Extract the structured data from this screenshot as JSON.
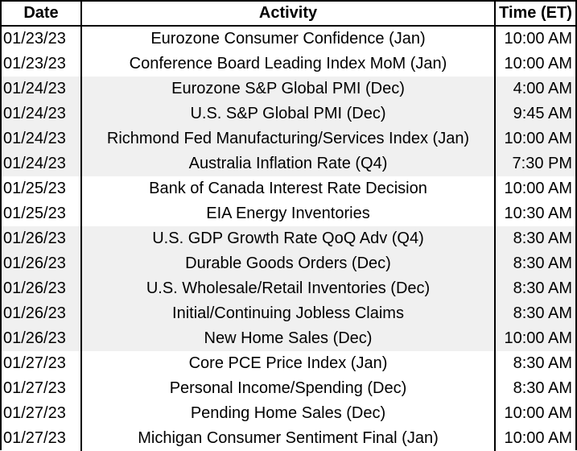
{
  "headers": {
    "date": "Date",
    "activity": "Activity",
    "time": "Time (ET)"
  },
  "rows": [
    {
      "date": "01/23/23",
      "activity": "Eurozone Consumer Confidence (Jan)",
      "time": "10:00 AM",
      "shade": false
    },
    {
      "date": "01/23/23",
      "activity": "Conference Board Leading Index MoM (Jan)",
      "time": "10:00 AM",
      "shade": false
    },
    {
      "date": "01/24/23",
      "activity": "Eurozone S&P Global PMI (Dec)",
      "time": "4:00 AM",
      "shade": true
    },
    {
      "date": "01/24/23",
      "activity": "U.S. S&P Global PMI (Dec)",
      "time": "9:45 AM",
      "shade": true
    },
    {
      "date": "01/24/23",
      "activity": "Richmond Fed Manufacturing/Services Index (Jan)",
      "time": "10:00 AM",
      "shade": true
    },
    {
      "date": "01/24/23",
      "activity": "Australia Inflation Rate (Q4)",
      "time": "7:30 PM",
      "shade": true
    },
    {
      "date": "01/25/23",
      "activity": "Bank of Canada Interest Rate Decision",
      "time": "10:00 AM",
      "shade": false
    },
    {
      "date": "01/25/23",
      "activity": "EIA Energy Inventories",
      "time": "10:30 AM",
      "shade": false
    },
    {
      "date": "01/26/23",
      "activity": "U.S. GDP Growth Rate QoQ Adv (Q4)",
      "time": "8:30 AM",
      "shade": true
    },
    {
      "date": "01/26/23",
      "activity": "Durable Goods Orders (Dec)",
      "time": "8:30 AM",
      "shade": true
    },
    {
      "date": "01/26/23",
      "activity": "U.S. Wholesale/Retail Inventories (Dec)",
      "time": "8:30 AM",
      "shade": true
    },
    {
      "date": "01/26/23",
      "activity": "Initial/Continuing Jobless Claims",
      "time": "8:30 AM",
      "shade": true
    },
    {
      "date": "01/26/23",
      "activity": "New Home Sales (Dec)",
      "time": "10:00 AM",
      "shade": true
    },
    {
      "date": "01/27/23",
      "activity": "Core PCE Price Index (Jan)",
      "time": "8:30 AM",
      "shade": false
    },
    {
      "date": "01/27/23",
      "activity": "Personal Income/Spending (Dec)",
      "time": "8:30 AM",
      "shade": false
    },
    {
      "date": "01/27/23",
      "activity": "Pending Home Sales (Dec)",
      "time": "10:00 AM",
      "shade": false
    },
    {
      "date": "01/27/23",
      "activity": "Michigan Consumer Sentiment Final (Jan)",
      "time": "10:00 AM",
      "shade": false
    }
  ],
  "colors": {
    "shade": "#f0f0f0",
    "border": "#000000"
  }
}
